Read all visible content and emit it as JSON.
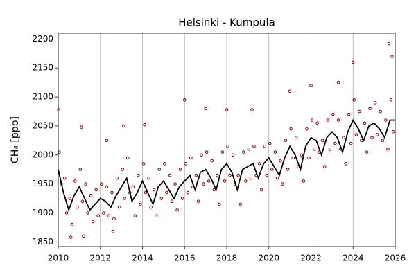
{
  "chart_data": {
    "type": "scatter",
    "title": "Helsinki - Kumpula",
    "y_label": "CH₄ [ppb]",
    "xlim": [
      2010,
      2026
    ],
    "ylim": [
      1842,
      2210
    ],
    "xticks": [
      2010,
      2012,
      2014,
      2016,
      2018,
      2020,
      2022,
      2024,
      2026
    ],
    "yticks": [
      1850,
      1900,
      1950,
      2000,
      2050,
      2100,
      2150,
      2200
    ],
    "grid": "x",
    "series": [
      {
        "type": "scatter",
        "color": "#8b0000",
        "x": [
          2010.05,
          2010.15,
          2010.3,
          2010.4,
          2010.55,
          2010.65,
          2010.8,
          2010.9,
          2011.05,
          2011.15,
          2011.3,
          2011.4,
          2011.55,
          2011.65,
          2011.8,
          2011.9,
          2012.05,
          2012.15,
          2012.3,
          2012.4,
          2012.55,
          2012.65,
          2012.8,
          2012.9,
          2013.05,
          2013.15,
          2013.3,
          2013.4,
          2013.55,
          2013.65,
          2013.8,
          2013.9,
          2014.05,
          2014.15,
          2014.3,
          2014.4,
          2014.55,
          2014.65,
          2014.8,
          2014.9,
          2015.05,
          2015.15,
          2015.3,
          2015.4,
          2015.55,
          2015.65,
          2015.8,
          2015.9,
          2016.05,
          2016.15,
          2016.3,
          2016.4,
          2016.55,
          2016.65,
          2016.8,
          2016.9,
          2017.05,
          2017.15,
          2017.3,
          2017.4,
          2017.55,
          2017.65,
          2017.8,
          2017.9,
          2018.05,
          2018.15,
          2018.3,
          2018.4,
          2018.55,
          2018.65,
          2018.8,
          2018.9,
          2019.05,
          2019.15,
          2019.3,
          2019.4,
          2019.55,
          2019.65,
          2019.8,
          2019.9,
          2020.05,
          2020.15,
          2020.3,
          2020.4,
          2020.55,
          2020.65,
          2020.8,
          2020.9,
          2021.05,
          2021.15,
          2021.3,
          2021.4,
          2021.55,
          2021.65,
          2021.8,
          2021.9,
          2022.05,
          2022.15,
          2022.3,
          2022.4,
          2022.55,
          2022.65,
          2022.8,
          2022.9,
          2023.05,
          2023.15,
          2023.3,
          2023.4,
          2023.55,
          2023.65,
          2023.8,
          2023.9,
          2024.05,
          2024.15,
          2024.3,
          2024.4,
          2024.55,
          2024.65,
          2024.8,
          2024.9,
          2025.05,
          2025.15,
          2025.3,
          2025.4,
          2025.55,
          2025.65,
          2025.8,
          2025.9,
          2010.02,
          2011.1,
          2012.3,
          2013.1,
          2014.1,
          2016.0,
          2017.0,
          2018.0,
          2019.2,
          2021.0,
          2022.0,
          2023.3,
          2024.0,
          2025.7,
          2025.85,
          2011.2,
          2012.6,
          2010.6
        ],
        "values": [
          2005,
          1950,
          1960,
          1900,
          1925,
          1880,
          1955,
          1910,
          1975,
          1920,
          1950,
          1900,
          1930,
          1885,
          1940,
          1895,
          1950,
          1900,
          1945,
          1895,
          1935,
          1890,
          1960,
          1910,
          1975,
          1925,
          1995,
          1935,
          1945,
          1895,
          1965,
          1915,
          1985,
          1935,
          1960,
          1910,
          1940,
          1895,
          1975,
          1925,
          1985,
          1935,
          1965,
          1920,
          1950,
          1905,
          1975,
          1925,
          1985,
          1935,
          1995,
          1945,
          1965,
          1920,
          2000,
          1950,
          2005,
          1955,
          1990,
          1940,
          1965,
          1915,
          2005,
          1955,
          2015,
          1965,
          2000,
          1950,
          1965,
          1915,
          2005,
          1955,
          2010,
          1960,
          2015,
          1965,
          1985,
          1940,
          2015,
          1965,
          2020,
          1975,
          2005,
          1960,
          1990,
          1950,
          2025,
          1975,
          2045,
          1995,
          2030,
          1980,
          2000,
          1955,
          2045,
          1995,
          2060,
          2010,
          2055,
          2005,
          2025,
          1980,
          2060,
          2010,
          2070,
          2020,
          2060,
          2010,
          2030,
          1985,
          2070,
          2020,
          2095,
          2035,
          2075,
          2025,
          2055,
          2005,
          2080,
          2030,
          2090,
          2035,
          2075,
          2025,
          2060,
          2010,
          2095,
          2040,
          2078,
          2048,
          2025,
          2050,
          2052,
          2095,
          2080,
          2078,
          2078,
          2110,
          2120,
          2125,
          2160,
          2192,
          2170,
          1860,
          1868,
          1858
        ]
      },
      {
        "type": "line",
        "color": "#000000",
        "x": [
          2010,
          2010.25,
          2010.5,
          2010.75,
          2011,
          2011.25,
          2011.5,
          2011.75,
          2012,
          2012.25,
          2012.5,
          2012.75,
          2013,
          2013.25,
          2013.5,
          2013.75,
          2014,
          2014.25,
          2014.5,
          2014.75,
          2015,
          2015.25,
          2015.5,
          2015.75,
          2016,
          2016.25,
          2016.5,
          2016.75,
          2017,
          2017.25,
          2017.5,
          2017.75,
          2018,
          2018.25,
          2018.5,
          2018.75,
          2019,
          2019.25,
          2019.5,
          2019.75,
          2020,
          2020.25,
          2020.5,
          2020.75,
          2021,
          2021.25,
          2021.5,
          2021.75,
          2022,
          2022.25,
          2022.5,
          2022.75,
          2023,
          2023.25,
          2023.5,
          2023.75,
          2024,
          2024.25,
          2024.5,
          2024.75,
          2025,
          2025.25,
          2025.5,
          2025.75,
          2026
        ],
        "values": [
          1975,
          1935,
          1905,
          1930,
          1945,
          1925,
          1905,
          1915,
          1925,
          1920,
          1910,
          1930,
          1945,
          1960,
          1920,
          1935,
          1955,
          1935,
          1915,
          1945,
          1955,
          1940,
          1925,
          1945,
          1955,
          1965,
          1940,
          1970,
          1975,
          1960,
          1940,
          1975,
          1985,
          1970,
          1940,
          1975,
          1980,
          1985,
          1960,
          1985,
          1995,
          1980,
          1965,
          1995,
          2015,
          2000,
          1975,
          2015,
          2030,
          2025,
          2000,
          2030,
          2040,
          2030,
          2005,
          2040,
          2060,
          2045,
          2025,
          2050,
          2055,
          2045,
          2030,
          2060,
          2060
        ]
      }
    ]
  }
}
